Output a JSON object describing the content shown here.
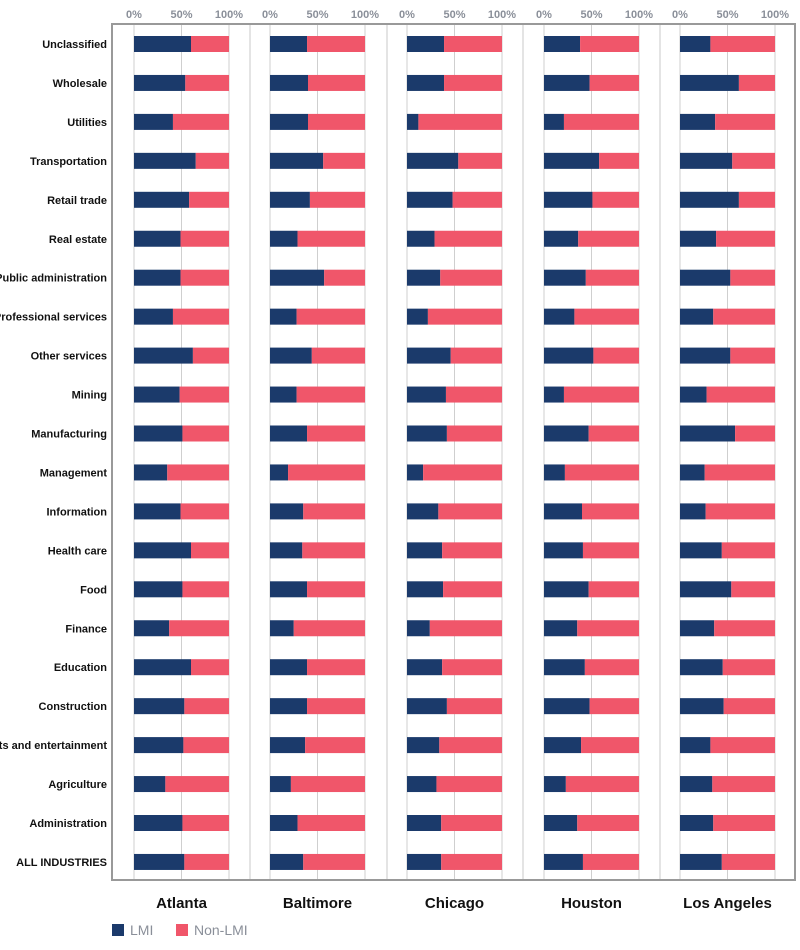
{
  "chart_data": {
    "type": "bar",
    "orientation": "horizontal-stacked-100",
    "xlim": [
      0,
      100
    ],
    "tick_labels": [
      "0%",
      "50%",
      "100%"
    ],
    "categories": [
      "Unclassified",
      "Wholesale",
      "Utilities",
      "Transportation",
      "Retail trade",
      "Real estate",
      "Public administration",
      "Professional services",
      "Other services",
      "Mining",
      "Manufacturing",
      "Management",
      "Information",
      "Health care",
      "Food",
      "Finance",
      "Education",
      "Construction",
      "Arts and entertainment",
      "Agriculture",
      "Administration",
      "ALL INDUSTRIES"
    ],
    "legend": [
      {
        "name": "LMI",
        "color": "#1b3a6b"
      },
      {
        "name": "Non-LMI",
        "color": "#f0566a"
      }
    ],
    "legend_position": "bottom-left",
    "panels": [
      {
        "city": "Atlanta",
        "lmi": [
          60,
          54,
          41,
          65,
          58,
          49,
          49,
          41,
          62,
          48,
          51,
          35,
          49,
          60,
          51,
          37,
          60,
          53,
          52,
          33,
          51,
          53
        ]
      },
      {
        "city": "Baltimore",
        "lmi": [
          39,
          40,
          40,
          56,
          42,
          29,
          57,
          28,
          44,
          28,
          39,
          19,
          35,
          34,
          39,
          25,
          39,
          39,
          37,
          22,
          29,
          35
        ]
      },
      {
        "city": "Chicago",
        "lmi": [
          39,
          39,
          12,
          54,
          48,
          29,
          35,
          22,
          46,
          41,
          42,
          17,
          33,
          37,
          38,
          24,
          37,
          42,
          34,
          31,
          36,
          36
        ]
      },
      {
        "city": "Houston",
        "lmi": [
          38,
          48,
          21,
          58,
          51,
          36,
          44,
          32,
          52,
          21,
          47,
          22,
          40,
          41,
          47,
          35,
          43,
          48,
          39,
          23,
          35,
          41
        ]
      },
      {
        "city": "Los Angeles",
        "lmi": [
          32,
          62,
          37,
          55,
          62,
          38,
          53,
          35,
          53,
          28,
          58,
          26,
          27,
          44,
          54,
          36,
          45,
          46,
          32,
          34,
          35,
          44
        ]
      }
    ]
  }
}
